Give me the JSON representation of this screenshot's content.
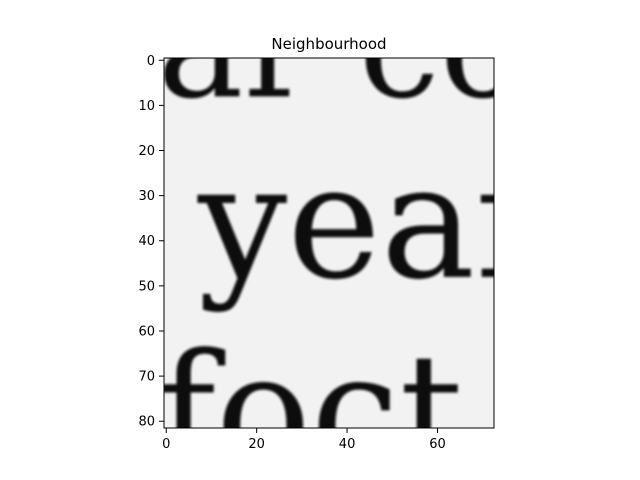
{
  "chart_data": {
    "type": "heatmap",
    "title": "Neighbourhood",
    "xlabel": "",
    "ylabel": "",
    "x_range": [
      -0.5,
      72.5
    ],
    "y_range": [
      81.5,
      -0.5
    ],
    "x_ticks": [
      0,
      20,
      40,
      60
    ],
    "y_ticks": [
      0,
      10,
      20,
      30,
      40,
      50,
      60,
      70,
      80
    ],
    "colormap": "gray",
    "grid": false,
    "image_content": "grayscale crop of printed serif text",
    "background_color": "#f2f2f2",
    "ink_color": "#111111",
    "text_fragments": [
      {
        "text": "ar co",
        "baseline_y": 8,
        "x": -2,
        "size": 32
      },
      {
        "text": "year",
        "baseline_y": 48,
        "x": 7,
        "size": 35
      },
      {
        "text": "foct o",
        "baseline_y": 90,
        "x": -2,
        "size": 35
      }
    ]
  }
}
